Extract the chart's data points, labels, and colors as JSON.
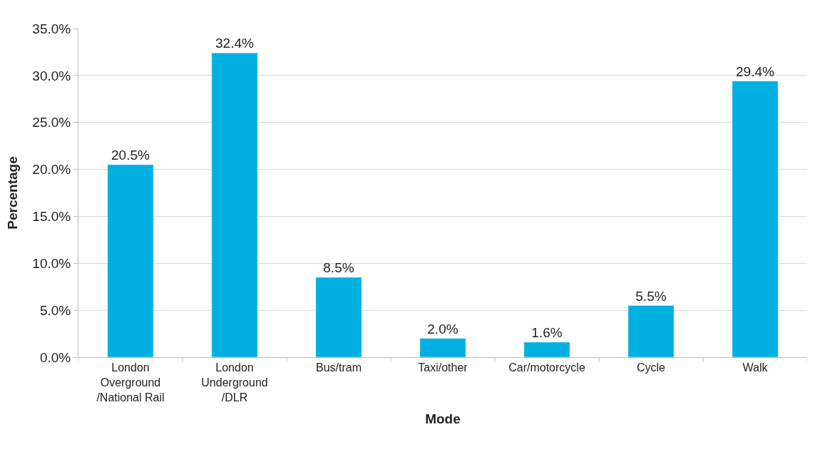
{
  "chart_data": {
    "type": "bar",
    "xlabel": "Mode",
    "ylabel": "Percentage",
    "categories": [
      "London Overground /National Rail",
      "London Underground /DLR",
      "Bus/tram",
      "Taxi/other",
      "Car/motorcycle",
      "Cycle",
      "Walk"
    ],
    "values": [
      20.5,
      32.4,
      8.5,
      2.0,
      1.6,
      5.5,
      29.4
    ],
    "value_labels": [
      "20.5%",
      "32.4%",
      "8.5%",
      "2.0%",
      "1.6%",
      "5.5%",
      "29.4%"
    ],
    "color": "#00b0e0",
    "ylim": [
      0,
      35
    ],
    "yticks": [
      {
        "value": 0,
        "label": "0.0%"
      },
      {
        "value": 5,
        "label": "5.0%"
      },
      {
        "value": 10,
        "label": "10.0%"
      },
      {
        "value": 15,
        "label": "15.0%"
      },
      {
        "value": 20,
        "label": "20.0%"
      },
      {
        "value": 25,
        "label": "25.0%"
      },
      {
        "value": 30,
        "label": "30.0%"
      },
      {
        "value": 35,
        "label": "35.0%"
      }
    ],
    "grid": "y",
    "legend": false
  }
}
